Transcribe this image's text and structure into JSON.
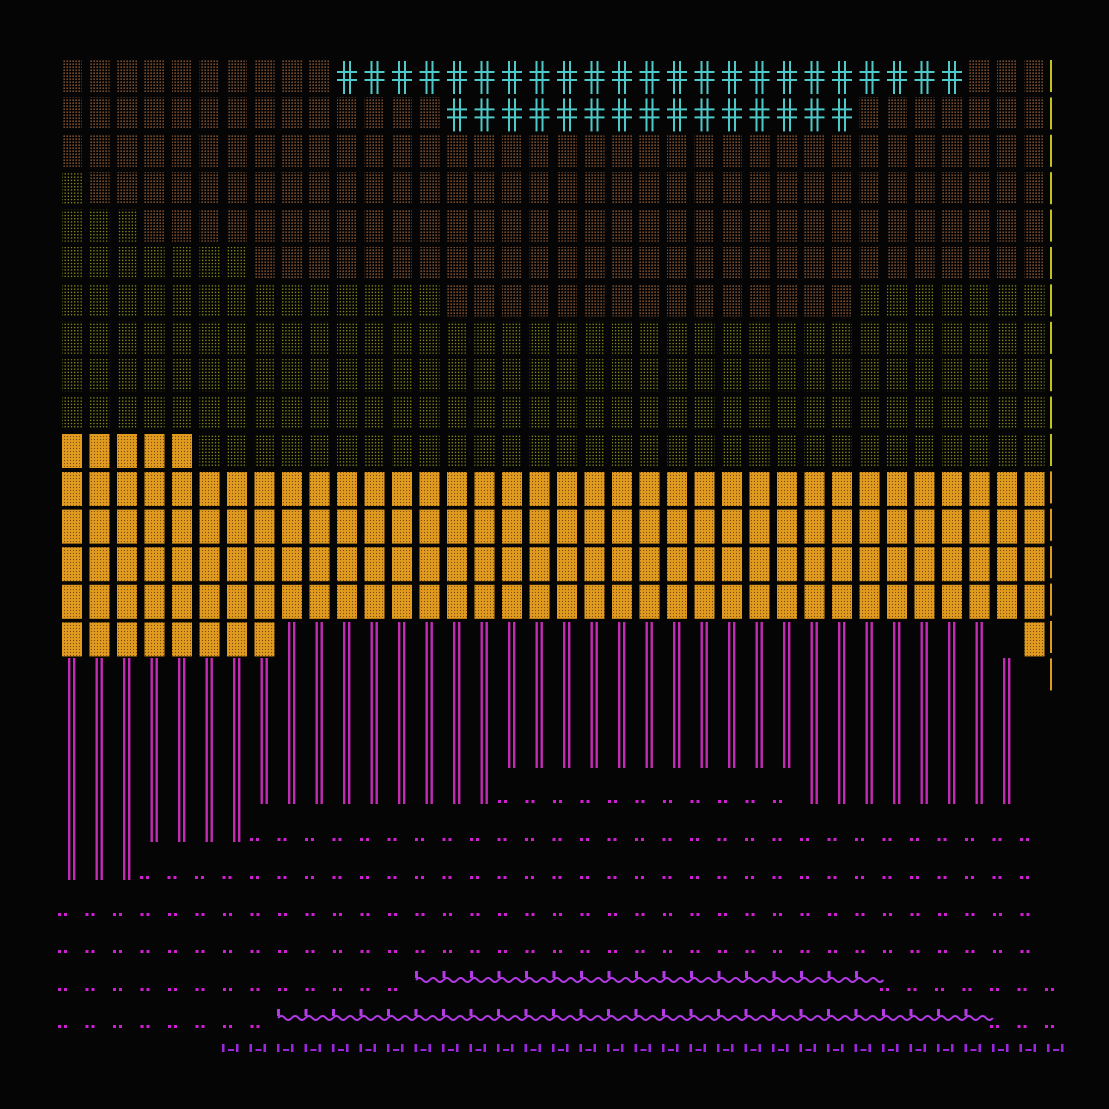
{
  "background": "#050505",
  "palette": {
    "brown_dots": "#b0703e",
    "olive_dots": "#c2c41a",
    "orange_block": "#e09a1e",
    "orange_dot": "#7a4a0a",
    "cyan_cross": "#4ec9c9",
    "magenta_bars": "#c42bb5",
    "magenta_dots": "#d21ed2",
    "violet_wave": "#b33be6",
    "violet_ticks": "#9b26e0"
  },
  "glyph_names": {
    "brown": "stipple-tile-brown",
    "olive": "stipple-tile-olive",
    "orange": "solid-tile-orange",
    "cross": "double-cross-cyan",
    "bars": "double-bar-magenta",
    "dots": "dot-pair-magenta",
    "wave": "tilde-wave-violet",
    "ticks": "tick-marks-violet"
  }
}
